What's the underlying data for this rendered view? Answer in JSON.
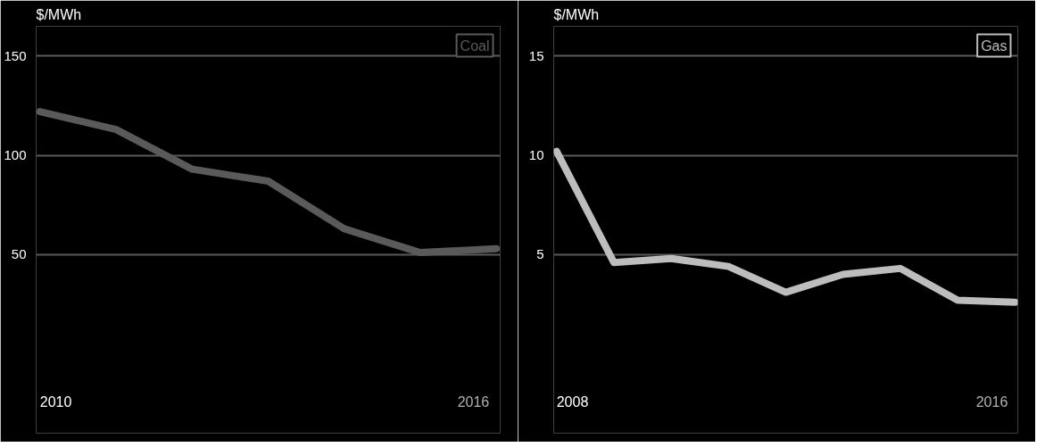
{
  "chart_data": [
    {
      "type": "line",
      "ylabel": "$/MWh",
      "categories": [
        null,
        null,
        null,
        null,
        null,
        null,
        null
      ],
      "series": [
        {
          "name": "Coal",
          "color": "#5a5a5a",
          "values": [
            122,
            113,
            93,
            87,
            63,
            51,
            53
          ]
        }
      ],
      "ylim": [
        -40,
        165
      ],
      "yticks": [
        50,
        100,
        150
      ],
      "grid": "y",
      "legend": "top right",
      "tick_labels": "y",
      "annotations": [
        "2010",
        "2016"
      ]
    },
    {
      "type": "line",
      "ylabel": "$/MWh",
      "categories": [
        null,
        null,
        null,
        null,
        null,
        null,
        null,
        null,
        null
      ],
      "series": [
        {
          "name": "Gas",
          "color": "#bdbdbd",
          "values": [
            10.2,
            4.6,
            4.8,
            4.4,
            3.1,
            4.0,
            4.3,
            2.7,
            2.6
          ]
        }
      ],
      "ylim": [
        -4,
        16.5
      ],
      "yticks": [
        5,
        10,
        15
      ],
      "grid": "y",
      "legend": "top right",
      "tick_labels": "y",
      "annotations": [
        "2008",
        "2016"
      ]
    }
  ]
}
